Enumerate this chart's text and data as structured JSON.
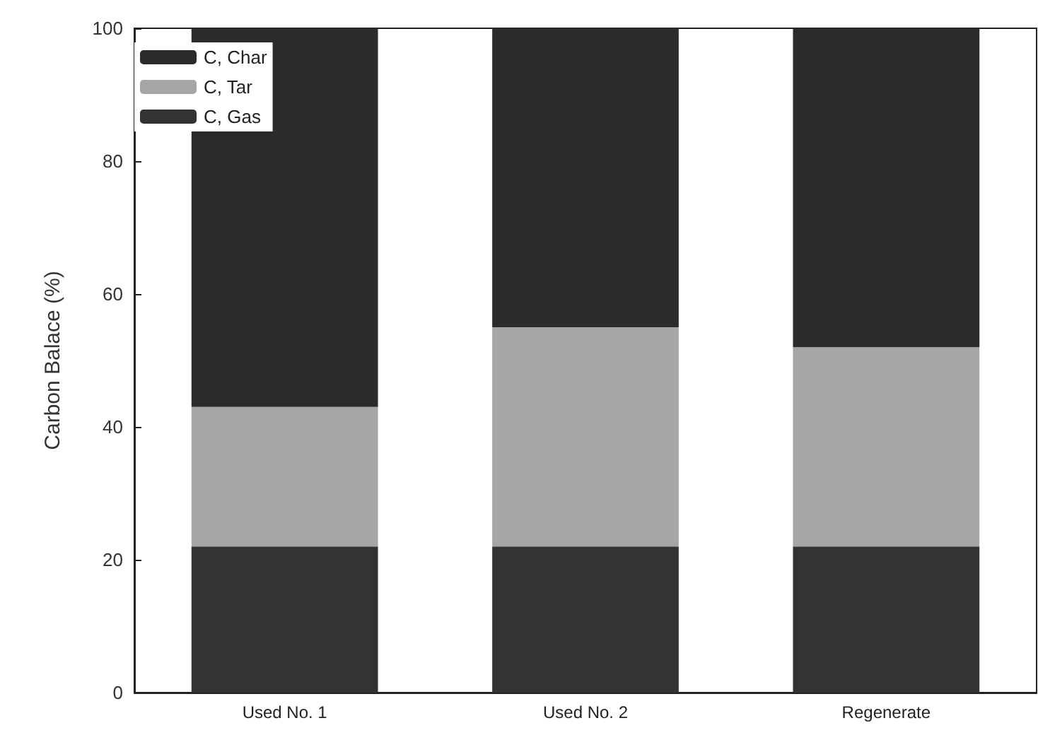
{
  "chart_data": {
    "type": "bar",
    "stacked": true,
    "ylabel": "Carbon Balace (%)",
    "categories": [
      "Used No. 1",
      "Used No. 2",
      "Regenerate"
    ],
    "series": [
      {
        "name": "C, Gas",
        "color": "#333333",
        "values": [
          22,
          22,
          22
        ]
      },
      {
        "name": "C, Tar",
        "color": "#a6a6a6",
        "values": [
          21,
          33,
          30
        ]
      },
      {
        "name": "C, Char",
        "color": "#2b2b2b",
        "values": [
          57,
          45,
          48
        ]
      }
    ],
    "ylim": [
      0,
      100
    ],
    "yticks": [
      0,
      20,
      40,
      60,
      80,
      100
    ],
    "grid": false,
    "legend": "top left"
  }
}
